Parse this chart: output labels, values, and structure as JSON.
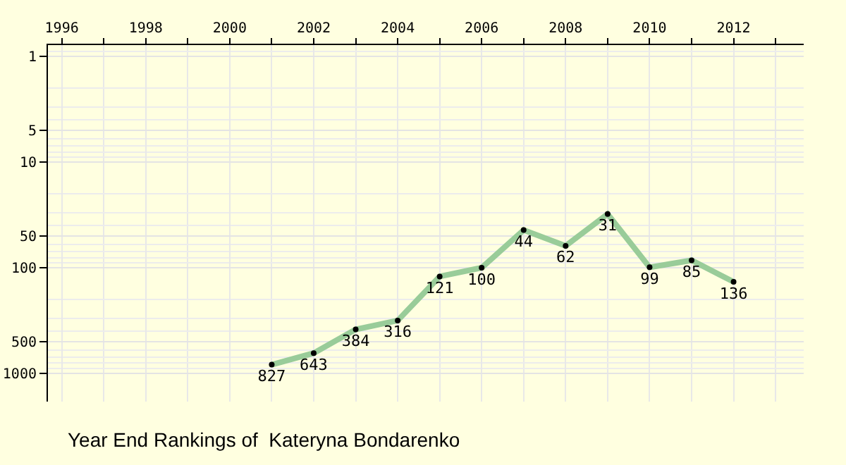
{
  "chart_data": {
    "type": "line",
    "title": "Year End Rankings of  Kateryna Bondarenko",
    "x": [
      2001,
      2002,
      2003,
      2004,
      2005,
      2006,
      2007,
      2008,
      2009,
      2010,
      2011,
      2012
    ],
    "values": [
      827,
      643,
      384,
      316,
      121,
      100,
      44,
      62,
      31,
      99,
      85,
      136
    ],
    "color": "#99cc99",
    "marker": "circle",
    "line_style": "solid",
    "data_labels": true,
    "log": true,
    "grid": true,
    "legend": false,
    "xlim": [
      1995.67,
      2013.67
    ],
    "xticks": [
      1996,
      1998,
      2000,
      2002,
      2004,
      2006,
      2008,
      2010,
      2012
    ],
    "ylim": [
      1850,
      0.78
    ],
    "yticks": [
      1,
      5,
      10,
      50,
      100,
      500,
      1000
    ]
  }
}
